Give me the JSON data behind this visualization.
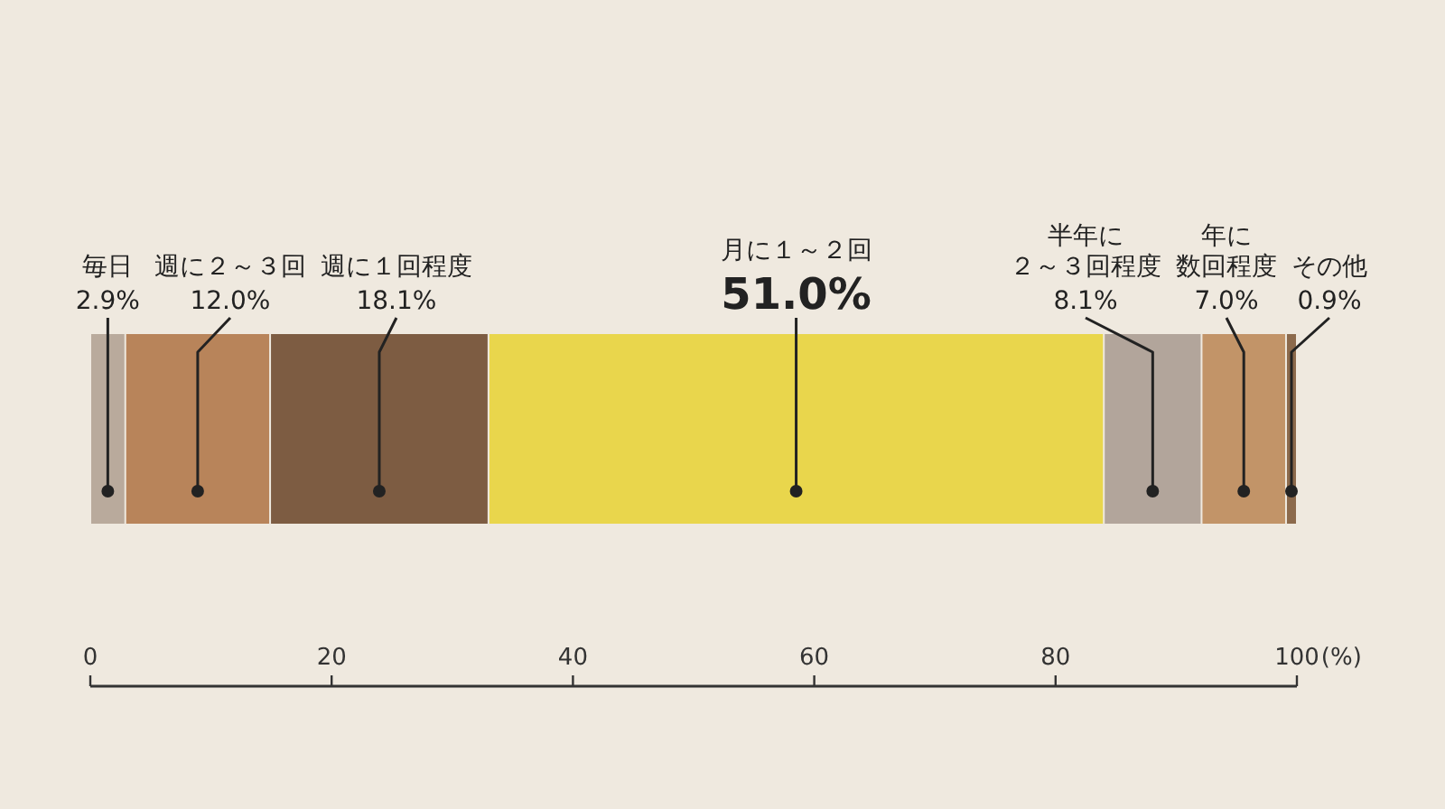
{
  "chart_data": {
    "type": "bar",
    "orientation": "horizontal",
    "stacked": true,
    "categories": [
      null
    ],
    "xlim": [
      0,
      100
    ],
    "xticks": [
      0,
      20,
      40,
      60,
      80,
      100
    ],
    "xlabel": "(%)",
    "series": [
      {
        "name": "毎日",
        "color": "#b9aa9c",
        "values": [
          2.9
        ],
        "value_labels": [
          "2.9%"
        ]
      },
      {
        "name": "週に２～３回",
        "color": "#b8845a",
        "values": [
          12.0
        ],
        "value_labels": [
          "12.0%"
        ]
      },
      {
        "name": "週に１回程度",
        "color": "#7d5c42",
        "values": [
          18.1
        ],
        "value_labels": [
          "18.1%"
        ]
      },
      {
        "name": "月に１～２回",
        "color": "#e9d64c",
        "values": [
          51.0
        ],
        "value_labels": [
          "51.0%"
        ]
      },
      {
        "name": "半年に２～３回程度",
        "color": "#b2a59b",
        "values": [
          8.1
        ],
        "value_labels": [
          "8.1%"
        ]
      },
      {
        "name": "年に数回程度",
        "color": "#c29468",
        "values": [
          7.0
        ],
        "value_labels": [
          "7.0%"
        ]
      },
      {
        "name": "その他",
        "color": "#8c6a4c",
        "values": [
          0.9
        ],
        "value_labels": [
          "0.9%"
        ]
      }
    ]
  }
}
